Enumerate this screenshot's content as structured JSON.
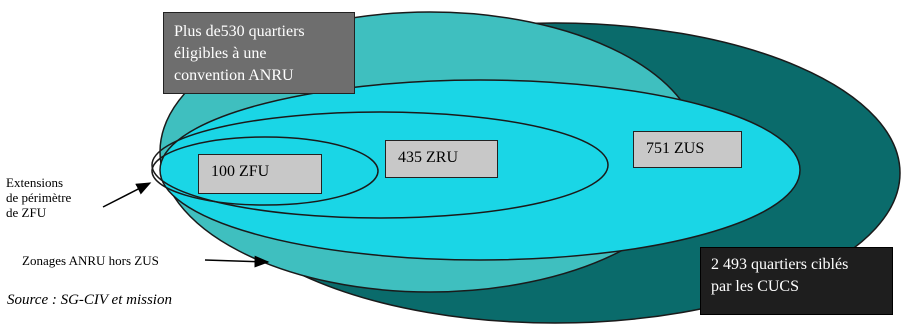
{
  "diagram": {
    "box_anru": [
      "Plus de530 quartiers",
      "éligibles à une",
      "convention ANRU"
    ],
    "box_cucs": [
      "2 493 quartiers ciblés",
      "par les CUCS"
    ],
    "label_zfu": "100 ZFU",
    "label_zru": "435 ZRU",
    "label_zus": "751 ZUS",
    "side_extensions": [
      "Extensions",
      "de périmètre",
      "de ZFU"
    ],
    "side_zonages": "Zonages ANRU hors ZUS",
    "source": "Source : SG-CIV et mission"
  },
  "colors": {
    "cucs": "#0a6b6b",
    "anru": "#3fbfbf",
    "zus": "#1ad6e6",
    "outline": "#1a1a1a"
  }
}
